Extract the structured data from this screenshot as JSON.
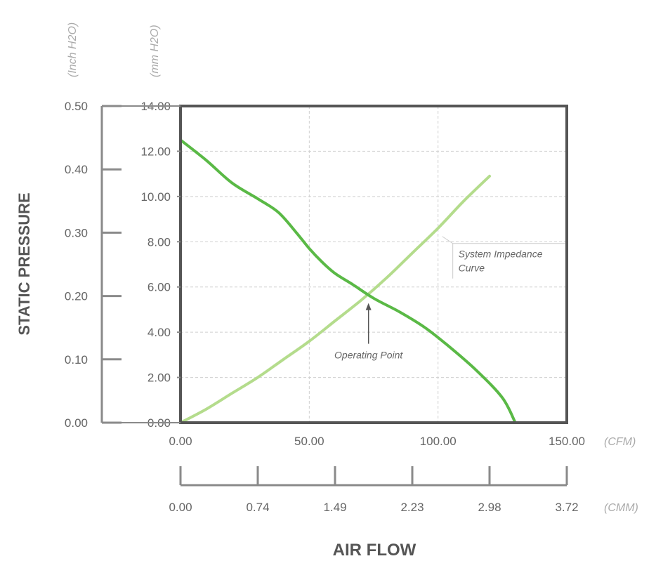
{
  "chart_data": {
    "type": "line",
    "title": "",
    "xlabel": "AIR FLOW",
    "ylabel": "STATIC PRESSURE",
    "xlim": [
      0,
      150
    ],
    "ylim": [
      0,
      14
    ],
    "grid": true,
    "x_ticks": [
      "0.00",
      "50.00",
      "100.00",
      "150.00"
    ],
    "x_unit": "(CFM)",
    "x2_ticks": [
      "0.00",
      "0.74",
      "1.49",
      "2.23",
      "2.98",
      "3.72"
    ],
    "x2_unit": "(CMM)",
    "y_ticks": [
      "0.00",
      "2.00",
      "4.00",
      "6.00",
      "8.00",
      "10.00",
      "12.00",
      "14.00"
    ],
    "y_unit": "(mm H2O)",
    "y2_ticks": [
      "0.00",
      "0.10",
      "0.20",
      "0.30",
      "0.40",
      "0.50"
    ],
    "y2_unit": "(Inch H2O)",
    "series": [
      {
        "name": "",
        "color": "#5ab946",
        "x": [
          0,
          10,
          20,
          30,
          38,
          45,
          50,
          55,
          60,
          67,
          75,
          85,
          95,
          105,
          115,
          125,
          130
        ],
        "y": [
          12.5,
          11.6,
          10.6,
          9.9,
          9.3,
          8.4,
          7.7,
          7.1,
          6.6,
          6.1,
          5.5,
          4.9,
          4.2,
          3.3,
          2.3,
          1.1,
          0
        ]
      },
      {
        "name": "System Impedance Curve",
        "color": "#b4dc8c",
        "x": [
          0,
          10,
          20,
          30,
          40,
          50,
          60,
          70,
          80,
          90,
          100,
          110,
          120
        ],
        "y": [
          0,
          0.6,
          1.3,
          2.0,
          2.8,
          3.6,
          4.5,
          5.4,
          6.4,
          7.5,
          8.6,
          9.8,
          10.9
        ]
      }
    ],
    "annotations": [
      {
        "text": "System Impedance Curve",
        "lines": [
          "System Impedance",
          "Curve"
        ],
        "x": 103,
        "y": 7.8
      },
      {
        "text": "Operating Point",
        "x": 73,
        "y": 5.6
      }
    ]
  }
}
